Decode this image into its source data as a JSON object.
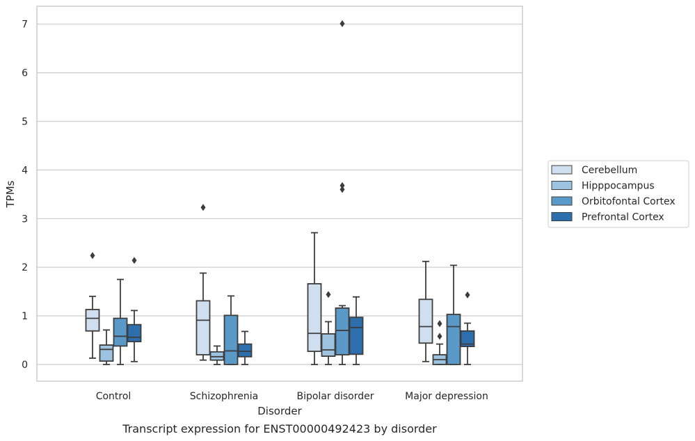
{
  "chart_data": {
    "type": "box",
    "title": "",
    "caption": "Transcript expression for ENST00000492423 by disorder",
    "xlabel": "Disorder",
    "ylabel": "TPMs",
    "ylim": [
      -0.33,
      7.37
    ],
    "yticks": [
      0,
      1,
      2,
      3,
      4,
      5,
      6,
      7
    ],
    "grid": "horizontal",
    "legend_position": "right",
    "categories": [
      "Control",
      "Schizophrenia",
      "Bipolar disorder",
      "Major depression"
    ],
    "series": [
      {
        "name": "Cerebellum",
        "color": "#cfdff0",
        "boxes": [
          {
            "whislo": 0.13,
            "q1": 0.69,
            "med": 0.95,
            "q3": 1.13,
            "whishi": 1.4,
            "fliers": [
              2.24
            ]
          },
          {
            "whislo": 0.09,
            "q1": 0.2,
            "med": 0.91,
            "q3": 1.31,
            "whishi": 1.88,
            "fliers": [
              3.23
            ]
          },
          {
            "whislo": 0.0,
            "q1": 0.27,
            "med": 0.64,
            "q3": 1.66,
            "whishi": 2.71,
            "fliers": []
          },
          {
            "whislo": 0.06,
            "q1": 0.44,
            "med": 0.78,
            "q3": 1.34,
            "whishi": 2.12,
            "fliers": []
          }
        ]
      },
      {
        "name": "Hipppocampus",
        "color": "#9dc3e0",
        "boxes": [
          {
            "whislo": 0.0,
            "q1": 0.07,
            "med": 0.31,
            "q3": 0.4,
            "whishi": 0.71,
            "fliers": []
          },
          {
            "whislo": 0.0,
            "q1": 0.09,
            "med": 0.16,
            "q3": 0.26,
            "whishi": 0.38,
            "fliers": []
          },
          {
            "whislo": 0.0,
            "q1": 0.17,
            "med": 0.3,
            "q3": 0.63,
            "whishi": 0.88,
            "fliers": [
              1.44
            ]
          },
          {
            "whislo": 0.0,
            "q1": 0.0,
            "med": 0.1,
            "q3": 0.2,
            "whishi": 0.42,
            "fliers": [
              0.58,
              0.84
            ]
          }
        ]
      },
      {
        "name": "Orbitofontal Cortex",
        "color": "#5b9ac8",
        "boxes": [
          {
            "whislo": 0.0,
            "q1": 0.38,
            "med": 0.58,
            "q3": 0.95,
            "whishi": 1.75,
            "fliers": []
          },
          {
            "whislo": 0.0,
            "q1": 0.0,
            "med": 0.28,
            "q3": 1.01,
            "whishi": 1.41,
            "fliers": []
          },
          {
            "whislo": 0.0,
            "q1": 0.2,
            "med": 0.7,
            "q3": 1.16,
            "whishi": 1.21,
            "fliers": [
              3.6,
              3.68,
              7.01
            ]
          },
          {
            "whislo": 0.0,
            "q1": 0.0,
            "med": 0.78,
            "q3": 1.03,
            "whishi": 2.04,
            "fliers": []
          }
        ]
      },
      {
        "name": "Prefrontal Cortex",
        "color": "#2c6fac",
        "boxes": [
          {
            "whislo": 0.06,
            "q1": 0.47,
            "med": 0.56,
            "q3": 0.82,
            "whishi": 1.11,
            "fliers": [
              2.14
            ]
          },
          {
            "whislo": 0.0,
            "q1": 0.16,
            "med": 0.27,
            "q3": 0.42,
            "whishi": 0.68,
            "fliers": []
          },
          {
            "whislo": 0.0,
            "q1": 0.21,
            "med": 0.76,
            "q3": 0.97,
            "whishi": 1.39,
            "fliers": []
          },
          {
            "whislo": 0.0,
            "q1": 0.37,
            "med": 0.42,
            "q3": 0.69,
            "whishi": 0.85,
            "fliers": [
              1.43
            ]
          }
        ]
      }
    ],
    "line_color": "#3d3d3d",
    "grid_color": "#cccccc",
    "frame_color": "#cccccc"
  }
}
